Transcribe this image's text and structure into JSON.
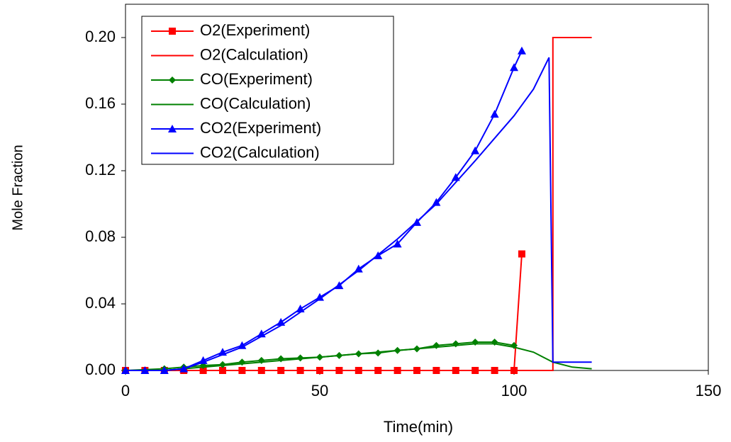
{
  "chart_data": {
    "type": "line",
    "x_label": "Time(min)",
    "y_label": "Mole Fraction",
    "xlim": [
      0,
      150
    ],
    "xticks": [
      0,
      50,
      100,
      150
    ],
    "ylim": [
      0,
      0.22
    ],
    "yticks": [
      {
        "value": 0,
        "label": "0.00"
      },
      {
        "value": 0.04,
        "label": "0.04"
      },
      {
        "value": 0.08,
        "label": "0.08"
      },
      {
        "value": 0.12,
        "label": "0.12"
      },
      {
        "value": 0.16,
        "label": "0.16"
      },
      {
        "value": 0.2,
        "label": "0.20"
      }
    ],
    "legend": "upper left",
    "series": [
      {
        "name": "O2(Experiment)",
        "color": "#ff0000",
        "marker": "square",
        "x": [
          0,
          5,
          10,
          15,
          20,
          25,
          30,
          35,
          40,
          45,
          50,
          55,
          60,
          65,
          70,
          75,
          80,
          85,
          90,
          95,
          100,
          102
        ],
        "values": [
          0,
          0,
          0,
          0,
          0,
          0,
          0,
          0,
          0,
          0,
          0,
          0,
          0,
          0,
          0,
          0,
          0,
          0,
          0,
          0,
          0,
          0.07
        ]
      },
      {
        "name": "O2(Calculation)",
        "color": "#ff0000",
        "marker": "none",
        "x": [
          0,
          109.5,
          110,
          110,
          120
        ],
        "values": [
          0,
          0,
          0,
          0.2,
          0.2
        ]
      },
      {
        "name": "CO(Experiment)",
        "color": "#008000",
        "marker": "diamond",
        "x": [
          0,
          10,
          15,
          20,
          25,
          30,
          35,
          40,
          45,
          50,
          55,
          60,
          65,
          70,
          75,
          80,
          85,
          90,
          95,
          100
        ],
        "values": [
          0,
          0.001,
          0.002,
          0.003,
          0.0035,
          0.005,
          0.006,
          0.007,
          0.0075,
          0.008,
          0.009,
          0.01,
          0.0105,
          0.012,
          0.013,
          0.015,
          0.016,
          0.017,
          0.017,
          0.015
        ]
      },
      {
        "name": "CO(Calculation)",
        "color": "#008000",
        "marker": "none",
        "x": [
          0,
          10,
          15,
          20,
          30,
          40,
          50,
          60,
          70,
          80,
          90,
          95,
          100,
          105,
          110,
          115,
          120
        ],
        "values": [
          0,
          0,
          0.001,
          0.002,
          0.004,
          0.006,
          0.008,
          0.01,
          0.012,
          0.014,
          0.016,
          0.016,
          0.014,
          0.011,
          0.005,
          0.002,
          0.001
        ]
      },
      {
        "name": "CO2(Experiment)",
        "color": "#0000ff",
        "marker": "triangle",
        "x": [
          0,
          5,
          10,
          15,
          20,
          25,
          30,
          35,
          40,
          45,
          50,
          55,
          60,
          65,
          70,
          75,
          80,
          85,
          90,
          95,
          100,
          102
        ],
        "values": [
          0,
          0,
          0,
          0.001,
          0.006,
          0.011,
          0.015,
          0.022,
          0.029,
          0.037,
          0.044,
          0.051,
          0.061,
          0.069,
          0.076,
          0.089,
          0.101,
          0.116,
          0.132,
          0.154,
          0.182,
          0.192
        ]
      },
      {
        "name": "CO2(Calculation)",
        "color": "#0000ff",
        "marker": "none",
        "x": [
          0,
          10,
          15,
          20,
          30,
          40,
          50,
          60,
          70,
          80,
          90,
          100,
          105,
          109,
          110,
          120
        ],
        "values": [
          0,
          0,
          0.001,
          0.005,
          0.014,
          0.027,
          0.043,
          0.06,
          0.079,
          0.1,
          0.126,
          0.153,
          0.169,
          0.188,
          0.005,
          0.005
        ]
      }
    ]
  }
}
